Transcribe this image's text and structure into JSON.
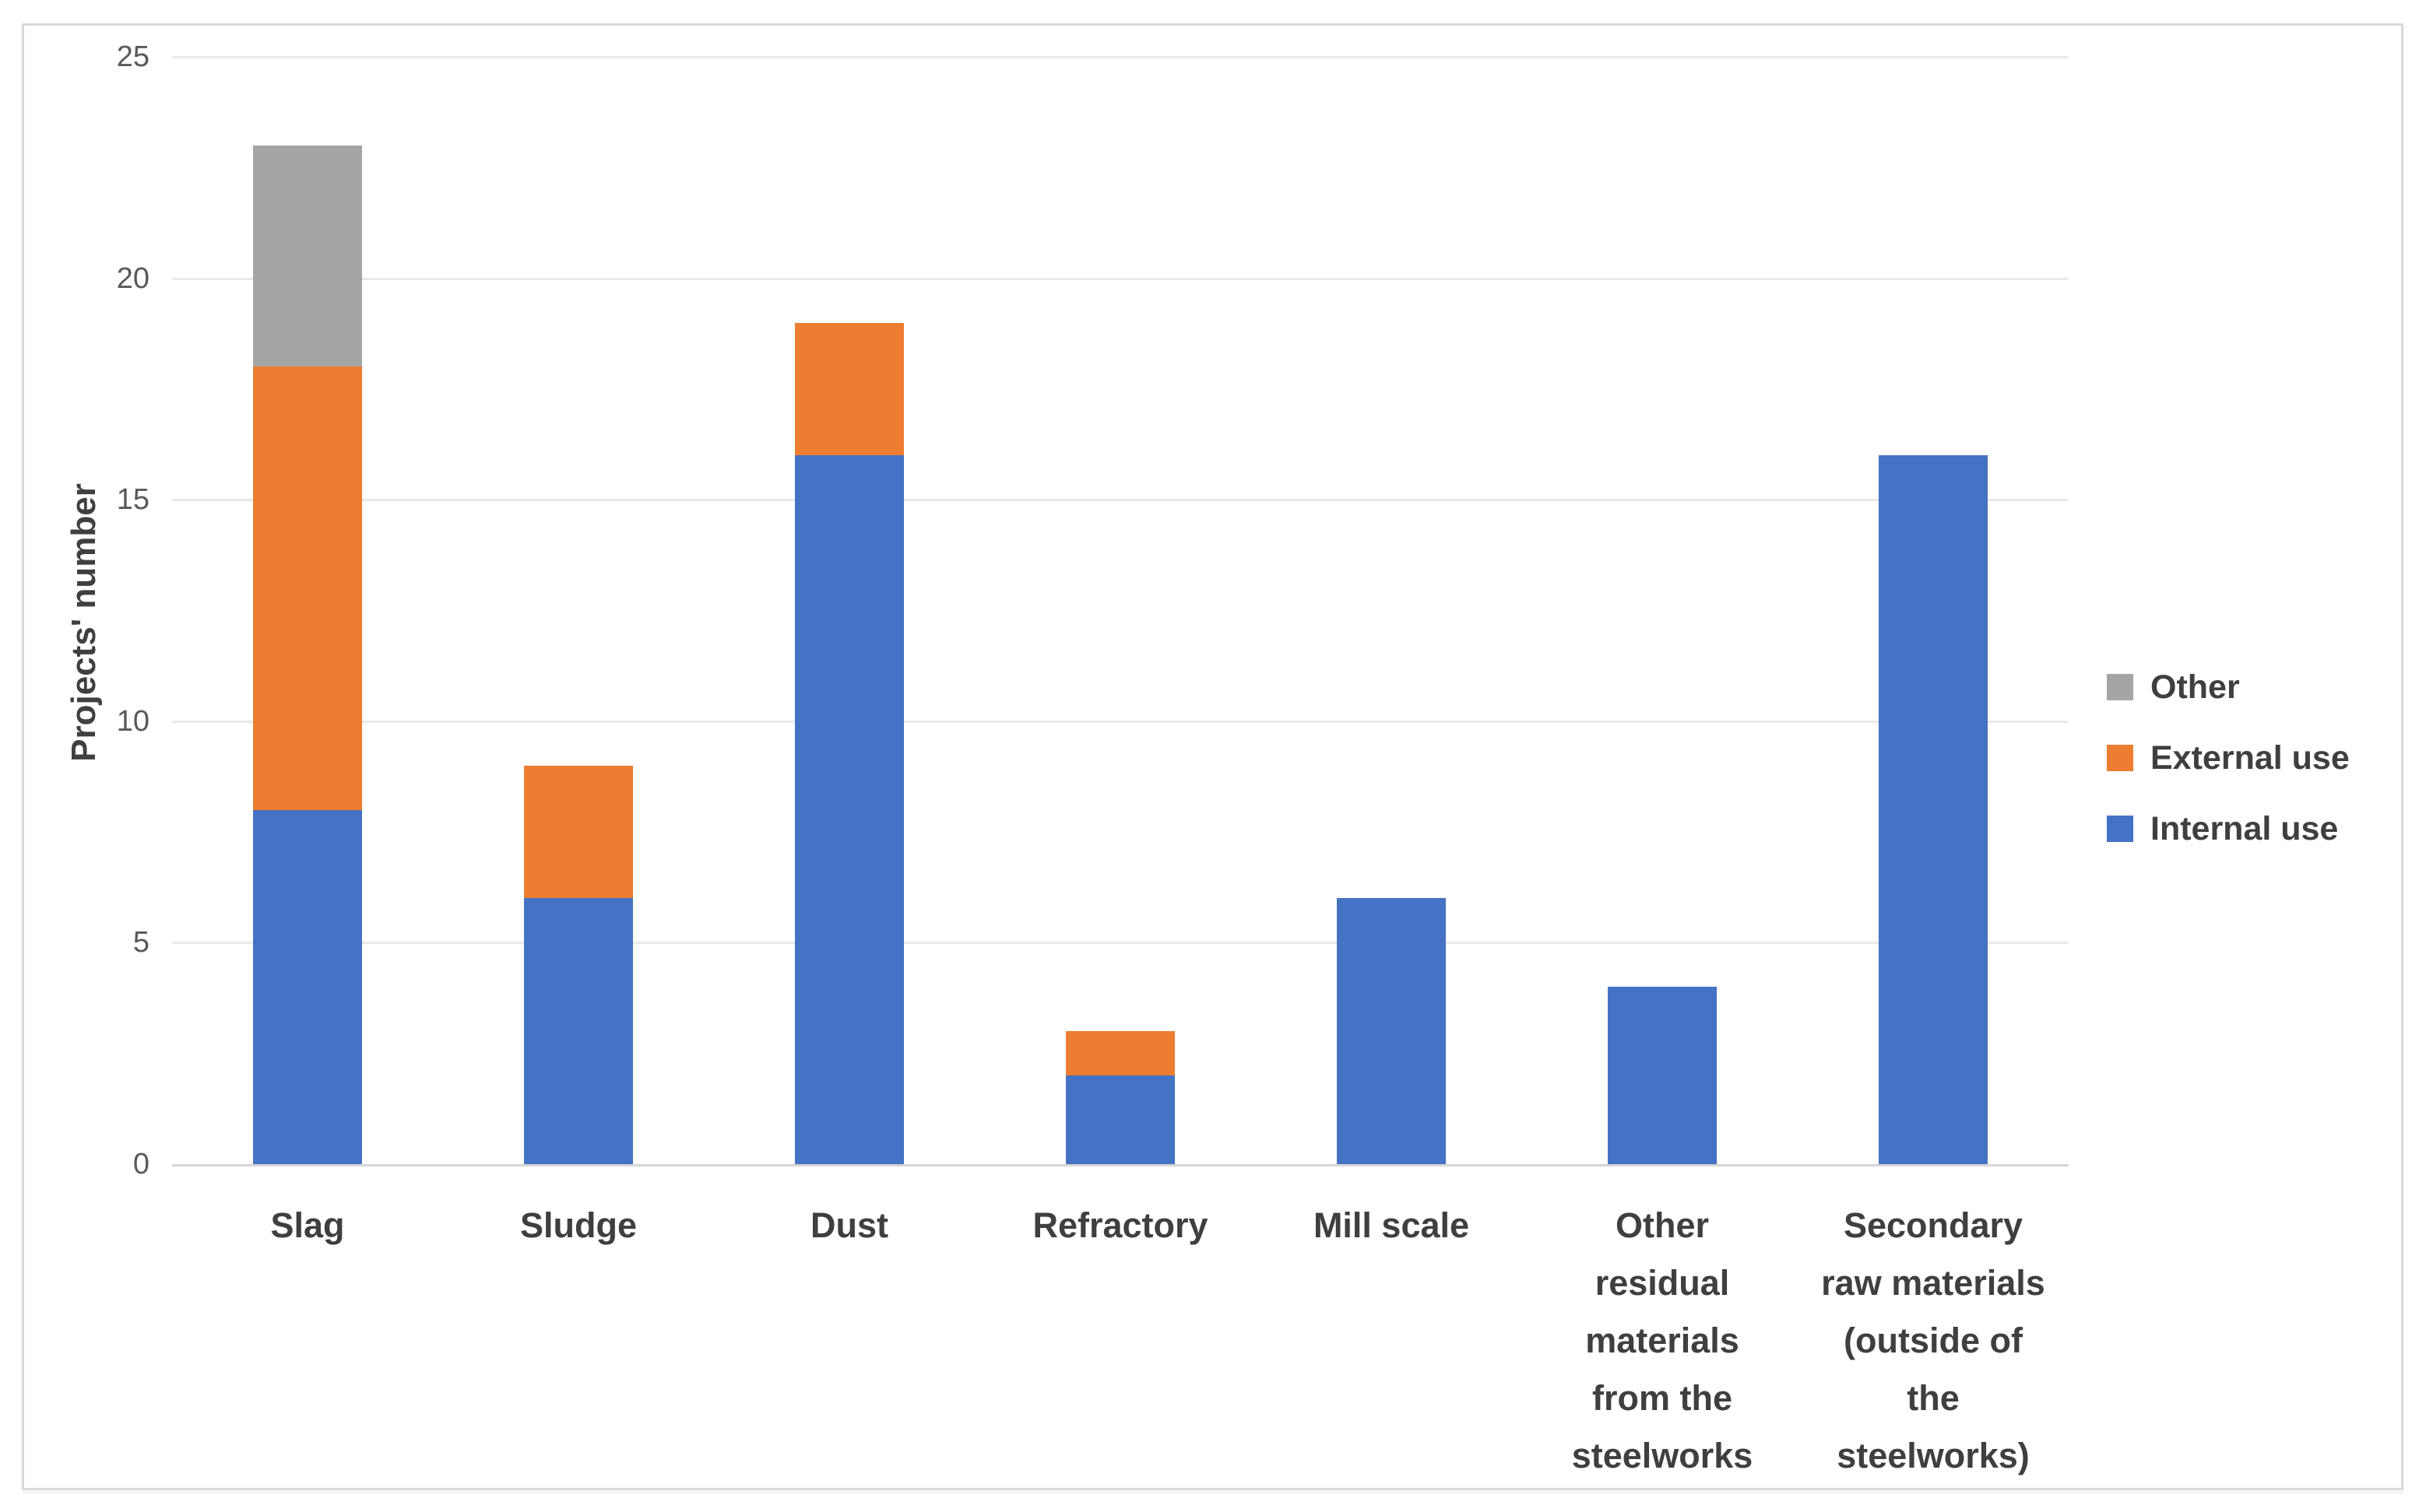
{
  "chart_data": {
    "type": "bar",
    "stacked": true,
    "title": "",
    "xlabel": "",
    "ylabel": "Projects' number",
    "ylim": [
      0,
      25
    ],
    "yticks": [
      0,
      5,
      10,
      15,
      20,
      25
    ],
    "grid": true,
    "categories": [
      "Slag",
      "Sludge",
      "Dust",
      "Refractory",
      "Mill scale",
      "Other residual materials from the steelworks",
      "Secondary raw materials (outside of the steelworks)"
    ],
    "category_label_lines": [
      [
        "Slag"
      ],
      [
        "Sludge"
      ],
      [
        "Dust"
      ],
      [
        "Refractory"
      ],
      [
        "Mill scale"
      ],
      [
        "Other",
        "residual",
        "materials",
        "from the",
        "steelworks"
      ],
      [
        "Secondary",
        "raw materials",
        "(outside of",
        "the",
        "steelworks)"
      ]
    ],
    "series": [
      {
        "name": "Internal use",
        "color": "#4472C4",
        "values": [
          8,
          6,
          16,
          2,
          6,
          4,
          16
        ]
      },
      {
        "name": "External use",
        "color": "#ED7D31",
        "values": [
          10,
          3,
          3,
          1,
          0,
          0,
          0
        ]
      },
      {
        "name": "Other",
        "color": "#A5A5A5",
        "values": [
          5,
          0,
          0,
          0,
          0,
          0,
          0
        ]
      }
    ],
    "totals": [
      23,
      9,
      19,
      3,
      6,
      4,
      16
    ],
    "legend": {
      "position": "right",
      "items": [
        {
          "label": "Other",
          "color": "#A5A5A5"
        },
        {
          "label": "External use",
          "color": "#ED7D31"
        },
        {
          "label": "Internal use",
          "color": "#4472C4"
        }
      ]
    }
  },
  "colors": {
    "background": "#FFFFFF",
    "figure_border": "#D9D9D9",
    "gridline": "#E9E9E9",
    "axis_line": "#D6D6D6",
    "tick_label": "#595959",
    "category_label": "#3F3F3F",
    "legend_label": "#3F3F3F",
    "y_title": "#3F3F3F"
  }
}
